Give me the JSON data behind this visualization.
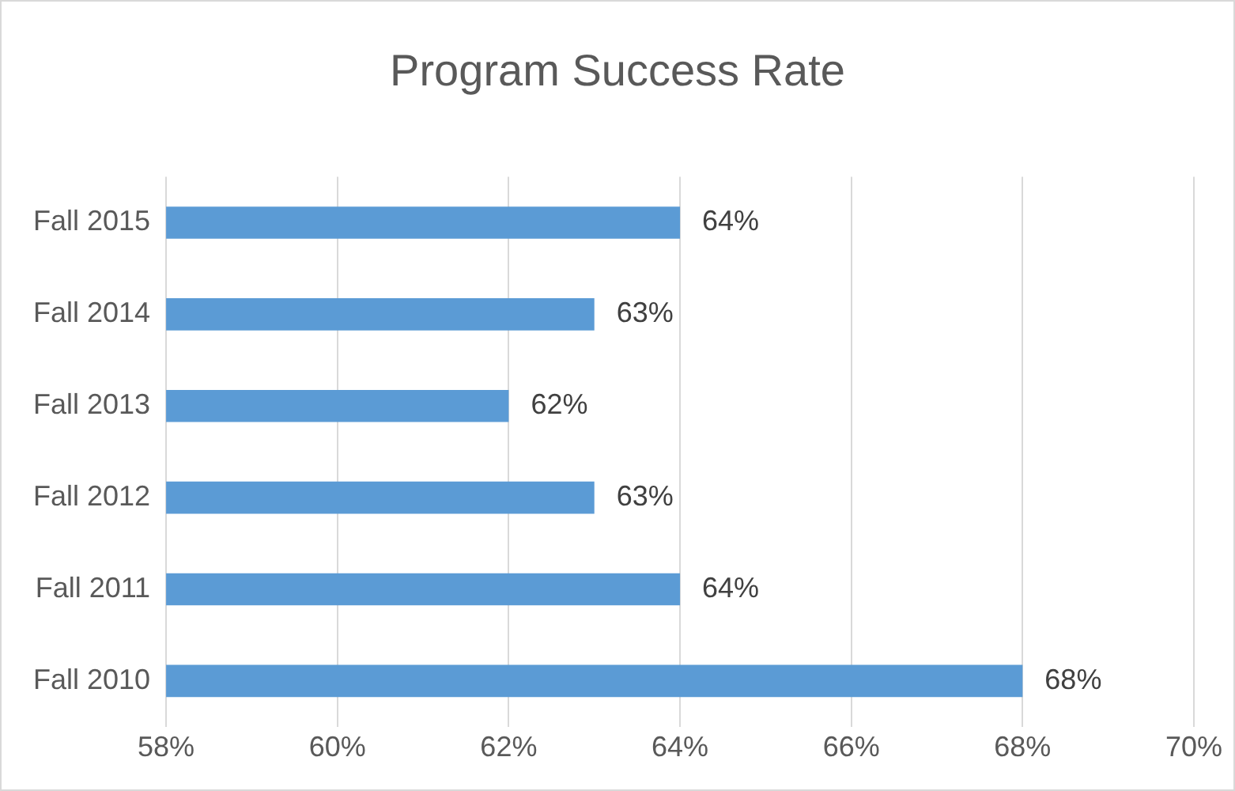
{
  "chart_data": {
    "type": "bar",
    "orientation": "horizontal",
    "title": "Program Success Rate",
    "categories": [
      "Fall 2015",
      "Fall 2014",
      "Fall 2013",
      "Fall 2012",
      "Fall 2011",
      "Fall 2010"
    ],
    "values": [
      64,
      63,
      62,
      63,
      64,
      68
    ],
    "value_labels": [
      "64%",
      "63%",
      "62%",
      "63%",
      "64%",
      "68%"
    ],
    "color": "#5b9bd5",
    "xlim": [
      58,
      70
    ],
    "xticks": [
      {
        "value": 58,
        "label": "58%"
      },
      {
        "value": 60,
        "label": "60%"
      },
      {
        "value": 62,
        "label": "62%"
      },
      {
        "value": 64,
        "label": "64%"
      },
      {
        "value": 66,
        "label": "66%"
      },
      {
        "value": 68,
        "label": "68%"
      },
      {
        "value": 70,
        "label": "70%"
      }
    ],
    "grid": "x",
    "legend": false
  }
}
